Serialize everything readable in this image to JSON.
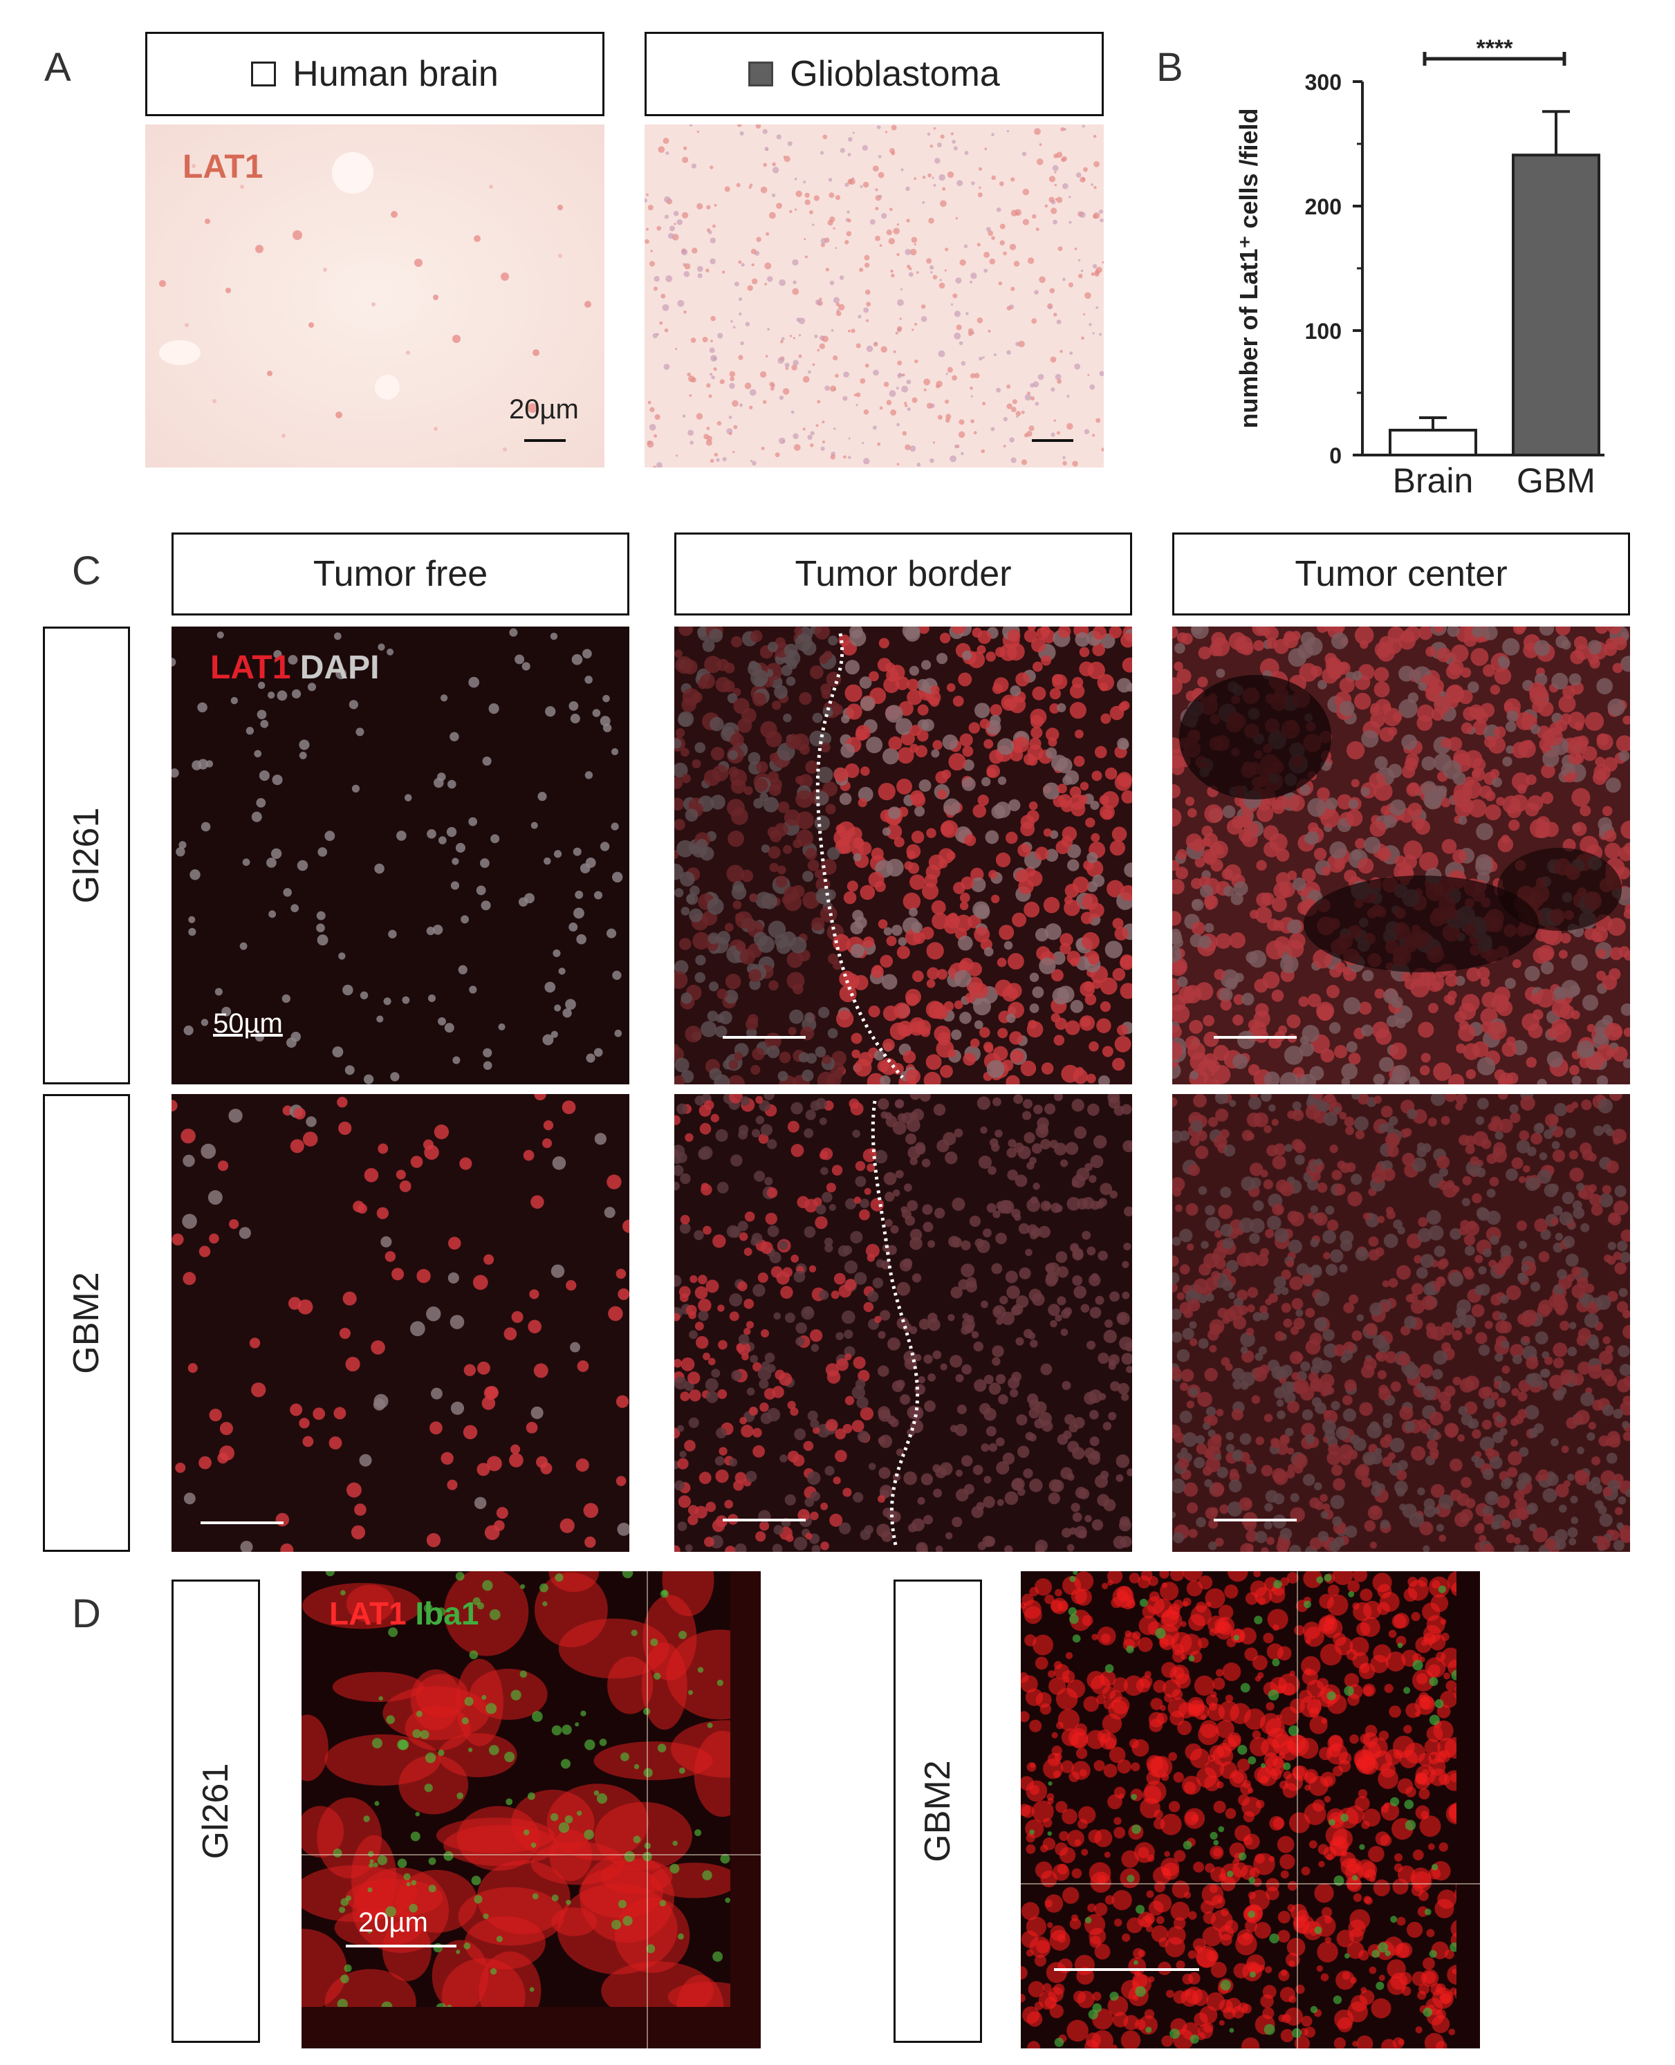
{
  "panels": {
    "a": {
      "letter": "A",
      "headers": [
        "Human brain",
        "Glioblastoma"
      ],
      "swatch_colors": [
        "#ffffff",
        "#606060"
      ],
      "stain_label": "LAT1",
      "scale_label": "20µm"
    },
    "b": {
      "letter": "B",
      "significance": "****"
    },
    "c": {
      "letter": "C",
      "columns": [
        "Tumor free",
        "Tumor border",
        "Tumor center"
      ],
      "rows": [
        "Gl261",
        "GBM2"
      ],
      "stain_red": "LAT1",
      "stain_white": "DAPI",
      "scale_label": "50µm"
    },
    "d": {
      "letter": "D",
      "rows": [
        "Gl261",
        "GBM2"
      ],
      "stain_red": "LAT1",
      "stain_green": "Iba1",
      "scale_label": "20µm"
    }
  },
  "chart_data": {
    "type": "bar",
    "categories": [
      "Brain",
      "GBM"
    ],
    "values": [
      20,
      241
    ],
    "errors": [
      10,
      35
    ],
    "bar_colors": [
      "#ffffff",
      "#606060"
    ],
    "ylabel": "number of Lat1⁺ cells /field",
    "ylim": [
      0,
      300
    ],
    "yticks": [
      0,
      100,
      200,
      300
    ],
    "grid": false
  }
}
